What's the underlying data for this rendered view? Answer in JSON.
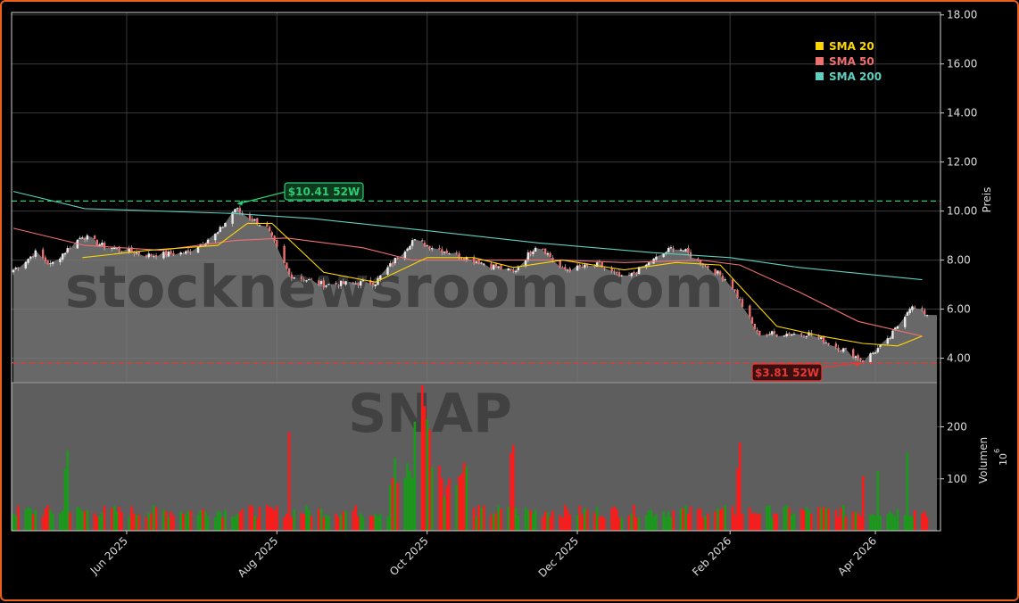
{
  "watermark": {
    "line1": "stocknewsroom.com",
    "line2": "SNAP"
  },
  "chart_data": {
    "type": "candlestick",
    "price_axis": {
      "label": "Preis",
      "ylim": [
        3.0,
        18.1
      ],
      "ticks": [
        "4.00",
        "6.00",
        "8.00",
        "10.00",
        "12.00",
        "14.00",
        "16.00",
        "18.00"
      ],
      "tick_values": [
        4,
        6,
        8,
        10,
        12,
        14,
        16,
        18
      ]
    },
    "volume_axis": {
      "label": "Volumen",
      "multiplier": "10",
      "multiplier_exp": "6",
      "ylim": [
        0,
        285
      ],
      "ticks": [
        "100",
        "200"
      ],
      "tick_values": [
        100,
        200
      ]
    },
    "x_axis": {
      "start": "2025-04-16",
      "end": "2026-04-22",
      "ticks": [
        "Jun 2025",
        "Aug 2025",
        "Oct 2025",
        "Dec 2025",
        "Feb 2026",
        "Apr 2026"
      ],
      "tick_dates": [
        "2025-06-01",
        "2025-08-01",
        "2025-10-01",
        "2025-12-01",
        "2026-02-01",
        "2026-04-01"
      ]
    },
    "legend": {
      "placement": "top-right",
      "items": [
        {
          "label": "SMA 20",
          "color": "#ffd700"
        },
        {
          "label": "SMA 50",
          "color": "#f07070"
        },
        {
          "label": "SMA 200",
          "color": "#5fd0c0"
        }
      ]
    },
    "high_52w": {
      "label": "$10.41 52W",
      "value": 10.41,
      "date": "2025-07-15",
      "color": "#2ecc71"
    },
    "low_52w": {
      "label": "$3.81 52W",
      "value": 3.81,
      "date": "2026-03-27",
      "color": "#e53935"
    },
    "close_key_points": [
      [
        "2025-04-16",
        7.6
      ],
      [
        "2025-04-25",
        8.3
      ],
      [
        "2025-05-01",
        7.8
      ],
      [
        "2025-05-14",
        9.0
      ],
      [
        "2025-05-22",
        8.6
      ],
      [
        "2025-06-10",
        8.2
      ],
      [
        "2025-06-25",
        8.3
      ],
      [
        "2025-07-08",
        9.1
      ],
      [
        "2025-07-15",
        10.1
      ],
      [
        "2025-07-28",
        9.3
      ],
      [
        "2025-08-06",
        7.4
      ],
      [
        "2025-08-20",
        7.0
      ],
      [
        "2025-09-10",
        7.1
      ],
      [
        "2025-09-25",
        8.8
      ],
      [
        "2025-10-20",
        8.0
      ],
      [
        "2025-11-05",
        7.5
      ],
      [
        "2025-11-15",
        8.7
      ],
      [
        "2025-11-25",
        7.6
      ],
      [
        "2025-12-10",
        7.8
      ],
      [
        "2025-12-20",
        7.2
      ],
      [
        "2026-01-10",
        8.6
      ],
      [
        "2026-01-25",
        7.6
      ],
      [
        "2026-02-01",
        7.1
      ],
      [
        "2026-02-12",
        5.0
      ],
      [
        "2026-03-05",
        5.0
      ],
      [
        "2026-03-20",
        4.3
      ],
      [
        "2026-03-27",
        3.9
      ],
      [
        "2026-04-06",
        4.7
      ],
      [
        "2026-04-15",
        6.1
      ],
      [
        "2026-04-22",
        5.8
      ]
    ],
    "sma20_points": [
      [
        "2025-05-14",
        8.1
      ],
      [
        "2025-06-10",
        8.4
      ],
      [
        "2025-07-08",
        8.6
      ],
      [
        "2025-07-20",
        9.5
      ],
      [
        "2025-07-30",
        9.5
      ],
      [
        "2025-08-20",
        7.5
      ],
      [
        "2025-09-10",
        7.1
      ],
      [
        "2025-10-01",
        8.1
      ],
      [
        "2025-10-20",
        8.1
      ],
      [
        "2025-11-05",
        7.7
      ],
      [
        "2025-11-25",
        8.0
      ],
      [
        "2025-12-20",
        7.6
      ],
      [
        "2026-01-10",
        7.9
      ],
      [
        "2026-01-28",
        7.8
      ],
      [
        "2026-02-20",
        5.3
      ],
      [
        "2026-03-10",
        4.9
      ],
      [
        "2026-03-27",
        4.6
      ],
      [
        "2026-04-10",
        4.5
      ],
      [
        "2026-04-20",
        4.9
      ]
    ],
    "sma50_points": [
      [
        "2025-04-16",
        9.3
      ],
      [
        "2025-05-15",
        8.6
      ],
      [
        "2025-06-15",
        8.4
      ],
      [
        "2025-07-15",
        8.8
      ],
      [
        "2025-08-05",
        8.9
      ],
      [
        "2025-09-05",
        8.5
      ],
      [
        "2025-09-25",
        8.0
      ],
      [
        "2025-10-25",
        8.0
      ],
      [
        "2025-11-25",
        8.0
      ],
      [
        "2025-12-20",
        7.9
      ],
      [
        "2026-01-20",
        8.0
      ],
      [
        "2026-02-05",
        7.8
      ],
      [
        "2026-03-01",
        6.7
      ],
      [
        "2026-03-25",
        5.5
      ],
      [
        "2026-04-20",
        4.9
      ]
    ],
    "sma200_points": [
      [
        "2025-04-16",
        10.8
      ],
      [
        "2025-05-15",
        10.1
      ],
      [
        "2025-07-15",
        9.9
      ],
      [
        "2025-08-15",
        9.7
      ],
      [
        "2025-10-01",
        9.2
      ],
      [
        "2025-11-15",
        8.7
      ],
      [
        "2026-01-01",
        8.3
      ],
      [
        "2026-02-01",
        8.1
      ],
      [
        "2026-03-01",
        7.7
      ],
      [
        "2026-04-20",
        7.2
      ]
    ]
  }
}
